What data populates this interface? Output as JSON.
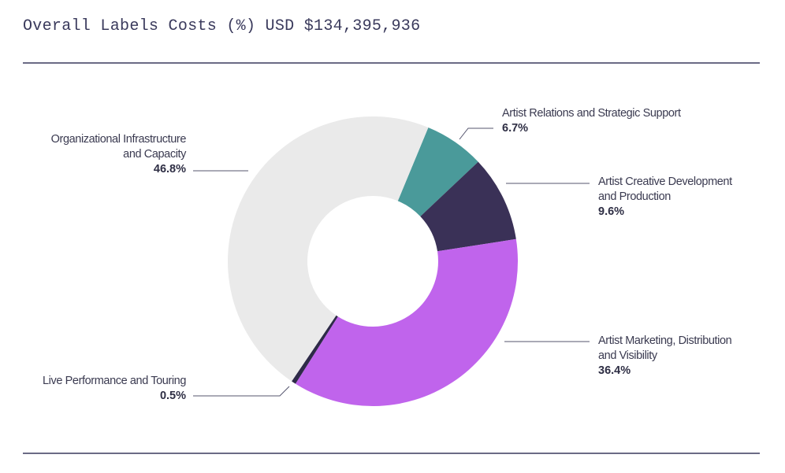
{
  "chart_data": {
    "type": "pie",
    "variant": "donut",
    "title": "Overall Labels Costs (%) USD $134,395,936",
    "unit": "%",
    "slices": [
      {
        "label_lines": [
          "Artist Relations and Strategic Support"
        ],
        "label": "Artist Relations and Strategic Support",
        "value": 6.7,
        "value_label": "6.7%",
        "color": "#4a9a9a"
      },
      {
        "label_lines": [
          "Artist Creative Development",
          "and Production"
        ],
        "label": "Artist Creative Development and Production",
        "value": 9.6,
        "value_label": "9.6%",
        "color": "#3a3157"
      },
      {
        "label_lines": [
          "Artist Marketing, Distribution",
          "and Visibility"
        ],
        "label": "Artist Marketing, Distribution and Visibility",
        "value": 36.4,
        "value_label": "36.4%",
        "color": "#c064ec"
      },
      {
        "label_lines": [
          "Live Performance and Touring"
        ],
        "label": "Live Performance and Touring",
        "value": 0.5,
        "value_label": "0.5%",
        "color": "#2e2a48"
      },
      {
        "label_lines": [
          "Organizational Infrastructure",
          "and Capacity"
        ],
        "label": "Organizational Infrastructure and Capacity",
        "value": 46.8,
        "value_label": "46.8%",
        "color": "#eaeaea"
      }
    ],
    "start_angle_deg": 22.5,
    "direction": "clockwise",
    "legend": "none (leader-line labels)"
  },
  "header": {
    "title": "Overall Labels Costs (%) USD $134,395,936"
  }
}
